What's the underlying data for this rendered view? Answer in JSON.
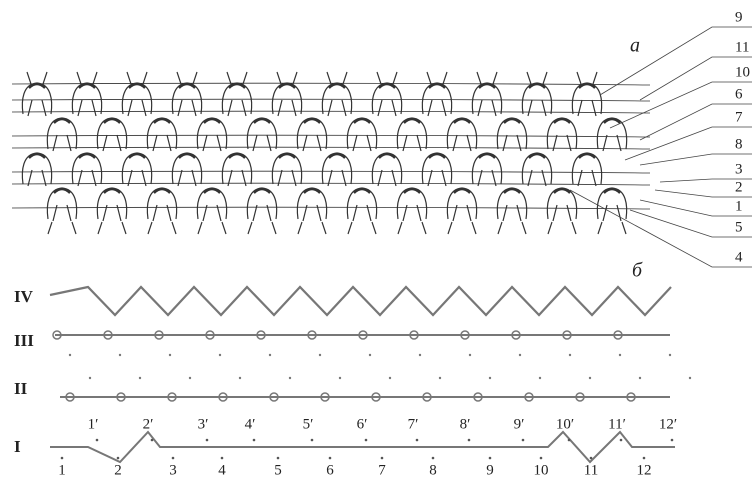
{
  "panel_a": {
    "label": "а",
    "callouts": [
      "9",
      "11",
      "10",
      "6",
      "7",
      "8",
      "3",
      "2",
      "1",
      "5",
      "4"
    ]
  },
  "panel_b": {
    "label": "б",
    "rows": [
      "IV",
      "III",
      "II",
      "I"
    ],
    "loop_labels": [
      "1′",
      "2′",
      "3′",
      "4′",
      "5′",
      "6′",
      "7′",
      "8′",
      "9′",
      "10′",
      "11′",
      "12′"
    ],
    "needle_labels": [
      "1",
      "2",
      "3",
      "4",
      "5",
      "6",
      "7",
      "8",
      "9",
      "10",
      "11",
      "12"
    ]
  }
}
